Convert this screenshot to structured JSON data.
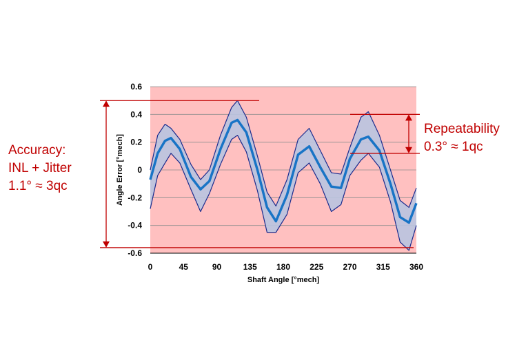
{
  "chart_data": {
    "type": "line",
    "xlabel": "Shaft Angle [°mech]",
    "ylabel": "Angle Error [°mech]",
    "xlim": [
      0,
      360
    ],
    "ylim": [
      -0.6,
      0.6
    ],
    "x_ticks": [
      "0",
      "45",
      "90",
      "135",
      "180",
      "225",
      "270",
      "315",
      "360"
    ],
    "y_ticks": [
      "0.6",
      "0.4",
      "0.2",
      "0",
      "-0.2",
      "-0.4",
      "-0.6"
    ],
    "grid": "horizontal",
    "plot_background": "#ffc0c0",
    "x": [
      0,
      10,
      20,
      28,
      40,
      55,
      68,
      80,
      95,
      110,
      118,
      130,
      145,
      158,
      170,
      185,
      200,
      215,
      230,
      245,
      258,
      270,
      285,
      295,
      310,
      325,
      338,
      350,
      360
    ],
    "series": [
      {
        "values": [
          -0.07,
          0.12,
          0.21,
          0.23,
          0.15,
          -0.05,
          -0.14,
          -0.08,
          0.15,
          0.34,
          0.36,
          0.27,
          0.0,
          -0.27,
          -0.37,
          -0.18,
          0.11,
          0.17,
          0.02,
          -0.12,
          -0.13,
          0.08,
          0.22,
          0.24,
          0.14,
          -0.1,
          -0.34,
          -0.38,
          -0.24
        ],
        "color": "#1874c6"
      },
      {
        "values": [
          0.0,
          0.25,
          0.33,
          0.3,
          0.22,
          0.04,
          -0.07,
          0.0,
          0.25,
          0.45,
          0.5,
          0.38,
          0.1,
          -0.16,
          -0.26,
          -0.07,
          0.22,
          0.3,
          0.14,
          -0.02,
          -0.03,
          0.16,
          0.38,
          0.42,
          0.25,
          0.0,
          -0.22,
          -0.27,
          -0.13
        ],
        "color": "#1a2a8c"
      },
      {
        "values": [
          -0.28,
          -0.04,
          0.05,
          0.12,
          0.05,
          -0.14,
          -0.3,
          -0.17,
          0.04,
          0.22,
          0.25,
          0.13,
          -0.15,
          -0.45,
          -0.45,
          -0.32,
          -0.02,
          0.05,
          -0.1,
          -0.3,
          -0.25,
          -0.04,
          0.07,
          0.12,
          0.02,
          -0.23,
          -0.52,
          -0.58,
          -0.4
        ],
        "color": "#1a2a8c"
      }
    ],
    "band_color": "#b9c4e0"
  },
  "annotations": {
    "accuracy": [
      "Accuracy:",
      "INL + Jitter",
      "1.1° ≈ 3qc"
    ],
    "repeatability": [
      "Repeatability",
      "0.3° ≈ 1qc"
    ],
    "accuracy_range": [
      -0.56,
      0.5
    ],
    "repeatability_range": [
      0.12,
      0.4
    ],
    "color": "#c00000"
  }
}
